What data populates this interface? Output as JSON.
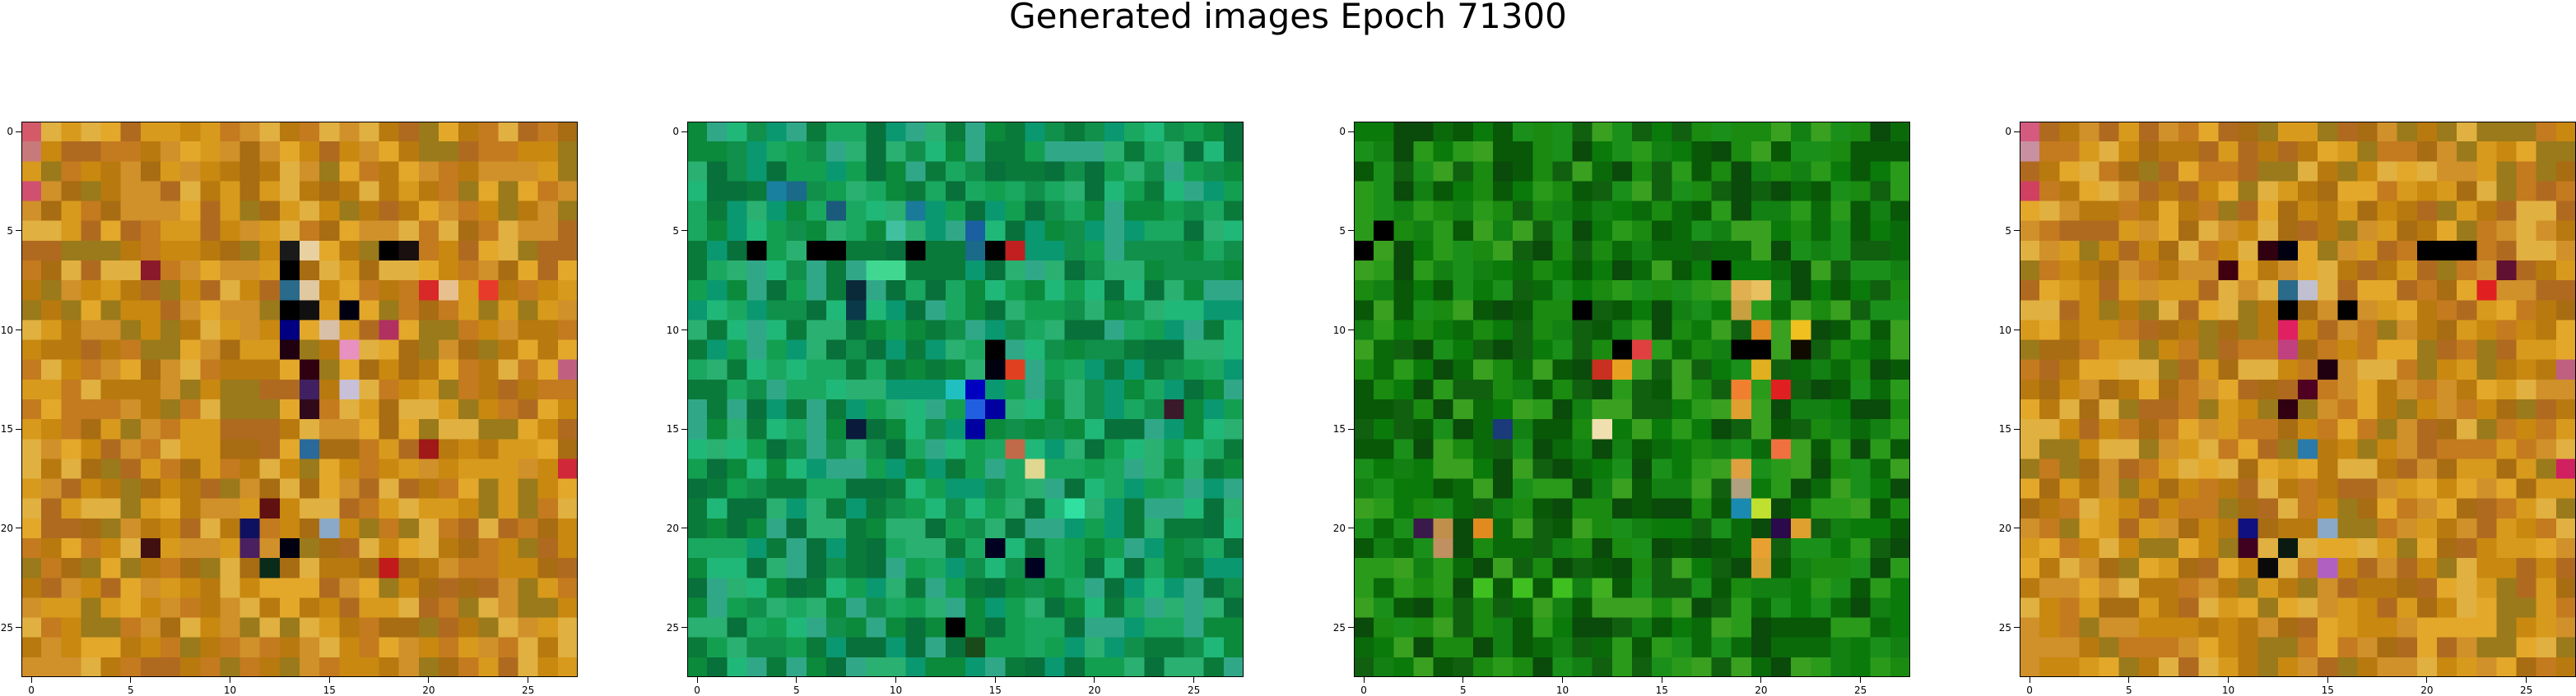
{
  "figure": {
    "title": "Generated images Epoch 71300"
  },
  "chart_data": {
    "type": "heatmap",
    "title": "Generated images Epoch 71300",
    "grid_size": 28,
    "xticks": [
      0,
      5,
      10,
      15,
      20,
      25
    ],
    "yticks": [
      0,
      5,
      10,
      15,
      20,
      25
    ],
    "xlim": [
      -0.5,
      27.5
    ],
    "ylim": [
      27.5,
      -0.5
    ],
    "panels": [
      {
        "name": "generated-image-1",
        "palette": [
          "#b8790e",
          "#c9880f",
          "#d89a1c",
          "#e3a82a",
          "#c47a1e",
          "#a86c12",
          "#d0902a",
          "#e0b040",
          "#b06a20",
          "#9a7a1a"
        ],
        "accents": [
          {
            "r": 0,
            "c": 0,
            "color": "#d45a6a"
          },
          {
            "r": 1,
            "c": 0,
            "color": "#c87a7a"
          },
          {
            "r": 3,
            "c": 0,
            "color": "#d05070"
          },
          {
            "r": 6,
            "c": 13,
            "color": "#1a1a1a"
          },
          {
            "r": 6,
            "c": 14,
            "color": "#e8d0a0"
          },
          {
            "r": 6,
            "c": 18,
            "color": "#000000"
          },
          {
            "r": 6,
            "c": 19,
            "color": "#1a1010"
          },
          {
            "r": 7,
            "c": 6,
            "color": "#8a1a2a"
          },
          {
            "r": 7,
            "c": 13,
            "color": "#000000"
          },
          {
            "r": 8,
            "c": 13,
            "color": "#2a6a8a"
          },
          {
            "r": 8,
            "c": 14,
            "color": "#e0c8a0"
          },
          {
            "r": 8,
            "c": 20,
            "color": "#d82828"
          },
          {
            "r": 8,
            "c": 21,
            "color": "#e8c090"
          },
          {
            "r": 8,
            "c": 23,
            "color": "#e83a2a"
          },
          {
            "r": 9,
            "c": 13,
            "color": "#000000"
          },
          {
            "r": 9,
            "c": 14,
            "color": "#101010"
          },
          {
            "r": 9,
            "c": 16,
            "color": "#000010"
          },
          {
            "r": 10,
            "c": 13,
            "color": "#000080"
          },
          {
            "r": 10,
            "c": 15,
            "color": "#d8c0a8"
          },
          {
            "r": 10,
            "c": 18,
            "color": "#b03060"
          },
          {
            "r": 11,
            "c": 13,
            "color": "#200010"
          },
          {
            "r": 11,
            "c": 16,
            "color": "#e890c0"
          },
          {
            "r": 12,
            "c": 14,
            "color": "#300010"
          },
          {
            "r": 12,
            "c": 27,
            "color": "#c06080"
          },
          {
            "r": 13,
            "c": 14,
            "color": "#402060"
          },
          {
            "r": 13,
            "c": 16,
            "color": "#c8c0d8"
          },
          {
            "r": 14,
            "c": 14,
            "color": "#300a1a"
          },
          {
            "r": 16,
            "c": 14,
            "color": "#2a6a9a"
          },
          {
            "r": 16,
            "c": 20,
            "color": "#a01818"
          },
          {
            "r": 17,
            "c": 27,
            "color": "#d02838"
          },
          {
            "r": 19,
            "c": 12,
            "color": "#601010"
          },
          {
            "r": 20,
            "c": 11,
            "color": "#101060"
          },
          {
            "r": 20,
            "c": 15,
            "color": "#8aa8c8"
          },
          {
            "r": 21,
            "c": 11,
            "color": "#4a2060"
          },
          {
            "r": 21,
            "c": 13,
            "color": "#000010"
          },
          {
            "r": 21,
            "c": 6,
            "color": "#401010"
          },
          {
            "r": 22,
            "c": 12,
            "color": "#0a2a1a"
          },
          {
            "r": 22,
            "c": 18,
            "color": "#c01a1a"
          }
        ]
      },
      {
        "name": "generated-image-2",
        "palette": [
          "#0a8a3a",
          "#12a050",
          "#1aa860",
          "#0a7a3a",
          "#2ab070",
          "#10904a",
          "#08703a",
          "#20b878",
          "#30a888",
          "#0a9870"
        ],
        "accents": [
          {
            "r": 3,
            "c": 4,
            "color": "#1a80a0"
          },
          {
            "r": 3,
            "c": 5,
            "color": "#1a6a8a"
          },
          {
            "r": 4,
            "c": 7,
            "color": "#1a5a7a"
          },
          {
            "r": 4,
            "c": 11,
            "color": "#1a7a9a"
          },
          {
            "r": 5,
            "c": 10,
            "color": "#40c0a0"
          },
          {
            "r": 6,
            "c": 3,
            "color": "#000000"
          },
          {
            "r": 6,
            "c": 6,
            "color": "#000000"
          },
          {
            "r": 6,
            "c": 7,
            "color": "#000000"
          },
          {
            "r": 6,
            "c": 11,
            "color": "#000000"
          },
          {
            "r": 6,
            "c": 15,
            "color": "#000000"
          },
          {
            "r": 6,
            "c": 16,
            "color": "#c02020"
          },
          {
            "r": 6,
            "c": 14,
            "color": "#1a6a8a"
          },
          {
            "r": 5,
            "c": 14,
            "color": "#1a60a0"
          },
          {
            "r": 7,
            "c": 9,
            "color": "#40d890"
          },
          {
            "r": 7,
            "c": 10,
            "color": "#40d890"
          },
          {
            "r": 8,
            "c": 8,
            "color": "#0a2a3a"
          },
          {
            "r": 9,
            "c": 8,
            "color": "#0a3a4a"
          },
          {
            "r": 11,
            "c": 15,
            "color": "#000000"
          },
          {
            "r": 12,
            "c": 15,
            "color": "#000010"
          },
          {
            "r": 12,
            "c": 16,
            "color": "#e04020"
          },
          {
            "r": 13,
            "c": 14,
            "color": "#0000c0"
          },
          {
            "r": 13,
            "c": 13,
            "color": "#20c0c0"
          },
          {
            "r": 14,
            "c": 14,
            "color": "#2060e0"
          },
          {
            "r": 14,
            "c": 15,
            "color": "#0000a0"
          },
          {
            "r": 14,
            "c": 24,
            "color": "#3a1a2a"
          },
          {
            "r": 15,
            "c": 14,
            "color": "#0000a0"
          },
          {
            "r": 16,
            "c": 16,
            "color": "#c06a4a"
          },
          {
            "r": 17,
            "c": 17,
            "color": "#e0d890"
          },
          {
            "r": 15,
            "c": 8,
            "color": "#0a1a3a"
          },
          {
            "r": 21,
            "c": 15,
            "color": "#000020"
          },
          {
            "r": 22,
            "c": 17,
            "color": "#000020"
          },
          {
            "r": 25,
            "c": 13,
            "color": "#000000"
          },
          {
            "r": 26,
            "c": 14,
            "color": "#1a4a1a"
          },
          {
            "r": 19,
            "c": 19,
            "color": "#30e0a0"
          }
        ]
      },
      {
        "name": "generated-image-3",
        "palette": [
          "#0a6a0a",
          "#128012",
          "#1a901a",
          "#085808",
          "#0a7a0a",
          "#2a9a1a",
          "#0a4a0a",
          "#1a8a10",
          "#3aa020",
          "#106010"
        ],
        "accents": [
          {
            "r": 7,
            "c": 18,
            "color": "#000000"
          },
          {
            "r": 8,
            "c": 19,
            "color": "#e0b050"
          },
          {
            "r": 8,
            "c": 20,
            "color": "#e8c060"
          },
          {
            "r": 9,
            "c": 11,
            "color": "#000000"
          },
          {
            "r": 9,
            "c": 19,
            "color": "#c8a040"
          },
          {
            "r": 10,
            "c": 20,
            "color": "#e08a20"
          },
          {
            "r": 10,
            "c": 22,
            "color": "#f0c020"
          },
          {
            "r": 11,
            "c": 13,
            "color": "#000000"
          },
          {
            "r": 11,
            "c": 14,
            "color": "#e04040"
          },
          {
            "r": 11,
            "c": 19,
            "color": "#000000"
          },
          {
            "r": 11,
            "c": 20,
            "color": "#000000"
          },
          {
            "r": 11,
            "c": 22,
            "color": "#100a00"
          },
          {
            "r": 12,
            "c": 12,
            "color": "#c83020"
          },
          {
            "r": 12,
            "c": 13,
            "color": "#e8a020"
          },
          {
            "r": 12,
            "c": 20,
            "color": "#e0b020"
          },
          {
            "r": 13,
            "c": 21,
            "color": "#e02020"
          },
          {
            "r": 13,
            "c": 19,
            "color": "#f08030"
          },
          {
            "r": 14,
            "c": 19,
            "color": "#e0a030"
          },
          {
            "r": 15,
            "c": 7,
            "color": "#1a3a7a"
          },
          {
            "r": 15,
            "c": 12,
            "color": "#f0e0b0"
          },
          {
            "r": 16,
            "c": 21,
            "color": "#f07040"
          },
          {
            "r": 17,
            "c": 19,
            "color": "#e0a040"
          },
          {
            "r": 18,
            "c": 19,
            "color": "#b0a080"
          },
          {
            "r": 19,
            "c": 19,
            "color": "#1a8ab0"
          },
          {
            "r": 19,
            "c": 20,
            "color": "#c0e030"
          },
          {
            "r": 20,
            "c": 4,
            "color": "#c0904a"
          },
          {
            "r": 20,
            "c": 6,
            "color": "#e08a20"
          },
          {
            "r": 20,
            "c": 3,
            "color": "#3a1a4a"
          },
          {
            "r": 20,
            "c": 21,
            "color": "#2a0a4a"
          },
          {
            "r": 20,
            "c": 22,
            "color": "#e0a030"
          },
          {
            "r": 21,
            "c": 4,
            "color": "#c09060"
          },
          {
            "r": 21,
            "c": 20,
            "color": "#e8a030"
          },
          {
            "r": 22,
            "c": 20,
            "color": "#d8a030"
          },
          {
            "r": 23,
            "c": 6,
            "color": "#40c020"
          },
          {
            "r": 23,
            "c": 8,
            "color": "#40c020"
          },
          {
            "r": 23,
            "c": 10,
            "color": "#40c020"
          },
          {
            "r": 23,
            "c": 12,
            "color": "#40b020"
          },
          {
            "r": 5,
            "c": 1,
            "color": "#000000"
          },
          {
            "r": 6,
            "c": 0,
            "color": "#000000"
          }
        ]
      },
      {
        "name": "generated-image-4",
        "palette": [
          "#b8790e",
          "#c9880f",
          "#d89a1c",
          "#e3a82a",
          "#c47a1e",
          "#a86c12",
          "#d0902a",
          "#e0b040",
          "#b06a20",
          "#9a7a1a"
        ],
        "accents": [
          {
            "r": 0,
            "c": 0,
            "color": "#d45a80"
          },
          {
            "r": 1,
            "c": 0,
            "color": "#c890a0"
          },
          {
            "r": 3,
            "c": 0,
            "color": "#d04060"
          },
          {
            "r": 6,
            "c": 12,
            "color": "#300010"
          },
          {
            "r": 6,
            "c": 13,
            "color": "#000010"
          },
          {
            "r": 6,
            "c": 20,
            "color": "#000000"
          },
          {
            "r": 6,
            "c": 21,
            "color": "#000000"
          },
          {
            "r": 6,
            "c": 22,
            "color": "#000000"
          },
          {
            "r": 7,
            "c": 10,
            "color": "#400010"
          },
          {
            "r": 7,
            "c": 24,
            "color": "#601030"
          },
          {
            "r": 8,
            "c": 13,
            "color": "#2a6a8a"
          },
          {
            "r": 8,
            "c": 14,
            "color": "#c0c0d0"
          },
          {
            "r": 8,
            "c": 23,
            "color": "#e02020"
          },
          {
            "r": 9,
            "c": 13,
            "color": "#000000"
          },
          {
            "r": 9,
            "c": 16,
            "color": "#000000"
          },
          {
            "r": 10,
            "c": 13,
            "color": "#e02060"
          },
          {
            "r": 11,
            "c": 13,
            "color": "#c04080"
          },
          {
            "r": 12,
            "c": 15,
            "color": "#200010"
          },
          {
            "r": 12,
            "c": 27,
            "color": "#c06080"
          },
          {
            "r": 13,
            "c": 14,
            "color": "#500020"
          },
          {
            "r": 14,
            "c": 13,
            "color": "#300010"
          },
          {
            "r": 16,
            "c": 14,
            "color": "#2a7aaa"
          },
          {
            "r": 17,
            "c": 27,
            "color": "#d02060"
          },
          {
            "r": 20,
            "c": 11,
            "color": "#101080"
          },
          {
            "r": 20,
            "c": 15,
            "color": "#8aa8c8"
          },
          {
            "r": 21,
            "c": 13,
            "color": "#0a1a10"
          },
          {
            "r": 21,
            "c": 11,
            "color": "#400020"
          },
          {
            "r": 22,
            "c": 15,
            "color": "#b060c0"
          },
          {
            "r": 22,
            "c": 12,
            "color": "#0a0a0a"
          }
        ]
      }
    ]
  }
}
